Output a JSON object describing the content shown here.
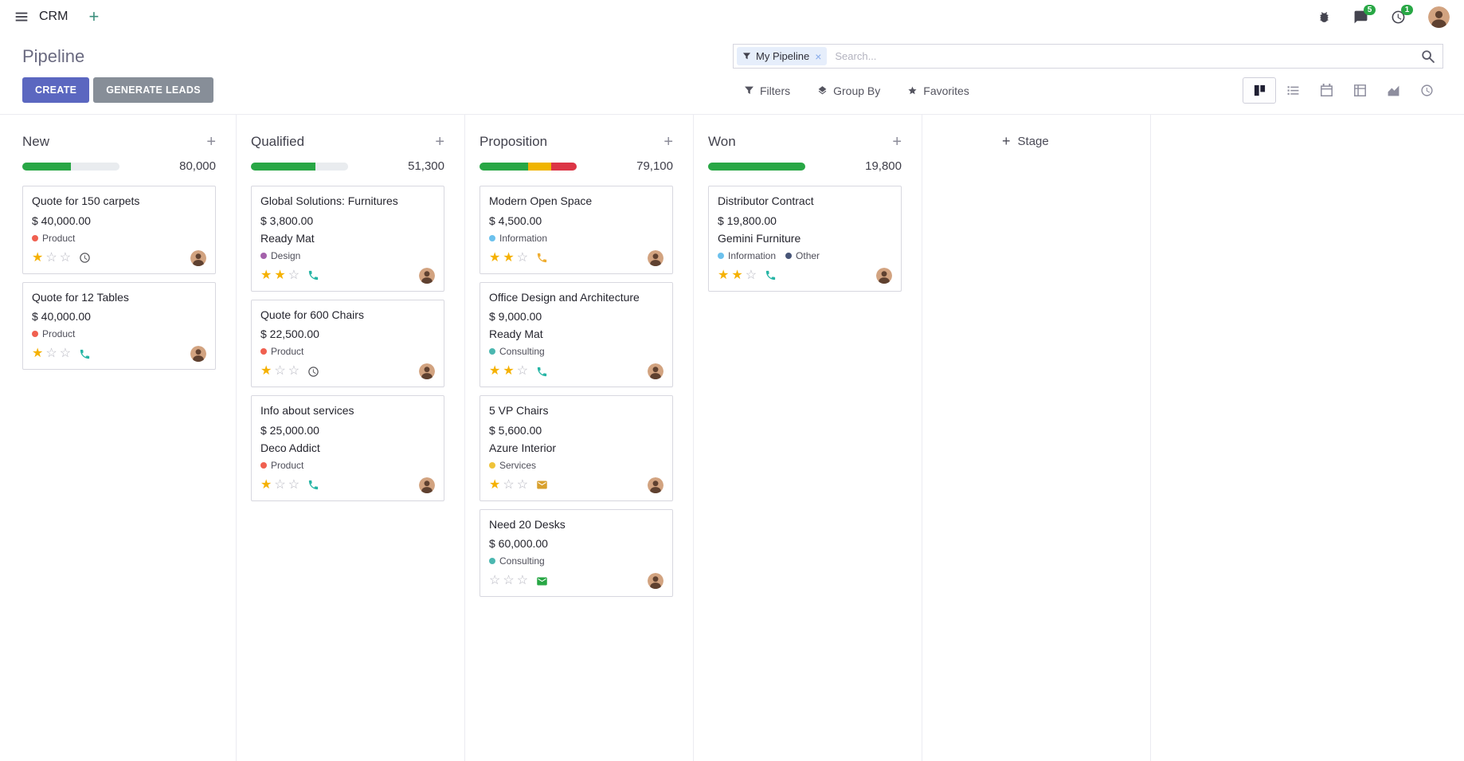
{
  "colors": {
    "primary_button": "#5b67c0",
    "secondary_button": "#878e98",
    "progress_success": "#28a745",
    "progress_warning": "#f0b400",
    "progress_danger": "#dc3545",
    "progress_track": "#e9ecef",
    "star_gold": "#f5b101",
    "badge_green": "#28a745",
    "facet_bg": "#e6eefb"
  },
  "topbar": {
    "app_name": "CRM",
    "messages_badge": "5",
    "activities_badge": "1"
  },
  "control_panel": {
    "breadcrumb": "Pipeline",
    "create_label": "CREATE",
    "generate_leads_label": "GENERATE LEADS",
    "search_facet": "My Pipeline",
    "search_placeholder": "Search...",
    "menus": [
      {
        "name": "filters",
        "icon": "filter-icon",
        "label": "Filters"
      },
      {
        "name": "group-by",
        "icon": "group-by-icon",
        "label": "Group By"
      },
      {
        "name": "favorites",
        "icon": "favorites-star-icon",
        "label": "Favorites"
      }
    ],
    "view_switcher": [
      {
        "name": "kanban",
        "icon": "kanban-view-icon",
        "active": true
      },
      {
        "name": "list",
        "icon": "list-view-icon",
        "active": false
      },
      {
        "name": "calendar",
        "icon": "calendar-view-icon",
        "active": false
      },
      {
        "name": "pivot",
        "icon": "pivot-view-icon",
        "active": false
      },
      {
        "name": "graph",
        "icon": "graph-view-icon",
        "active": false
      },
      {
        "name": "activity",
        "icon": "activity-view-icon",
        "active": false
      }
    ]
  },
  "kanban": {
    "add_stage_label": "Stage",
    "columns": [
      {
        "title": "New",
        "counter": "80,000",
        "progress": [
          {
            "color": "#28a745",
            "pct": 50
          },
          {
            "color": "#e9ecef",
            "pct": 50
          }
        ],
        "cards": [
          {
            "title": "Quote for 150 carpets",
            "amount": "$ 40,000.00",
            "tags": [
              {
                "label": "Product",
                "color": "#f06050"
              }
            ],
            "stars": 1,
            "activity": {
              "icon": "clock-icon",
              "color": "#545459"
            }
          },
          {
            "title": "Quote for 12 Tables",
            "amount": "$ 40,000.00",
            "tags": [
              {
                "label": "Product",
                "color": "#f06050"
              }
            ],
            "stars": 1,
            "activity": {
              "icon": "phone-icon",
              "color": "#26b5a5"
            }
          }
        ]
      },
      {
        "title": "Qualified",
        "counter": "51,300",
        "progress": [
          {
            "color": "#28a745",
            "pct": 66
          },
          {
            "color": "#e9ecef",
            "pct": 34
          }
        ],
        "cards": [
          {
            "title": "Global Solutions: Furnitures",
            "amount": "$ 3,800.00",
            "partner": "Ready Mat",
            "tags": [
              {
                "label": "Design",
                "color": "#a461ab"
              }
            ],
            "stars": 2,
            "activity": {
              "icon": "phone-icon",
              "color": "#26b5a5"
            }
          },
          {
            "title": "Quote for 600 Chairs",
            "amount": "$ 22,500.00",
            "tags": [
              {
                "label": "Product",
                "color": "#f06050"
              }
            ],
            "stars": 1,
            "activity": {
              "icon": "clock-icon",
              "color": "#545459"
            }
          },
          {
            "title": "Info about services",
            "amount": "$ 25,000.00",
            "partner": "Deco Addict",
            "tags": [
              {
                "label": "Product",
                "color": "#f06050"
              }
            ],
            "stars": 1,
            "activity": {
              "icon": "phone-icon",
              "color": "#26b5a5"
            }
          }
        ]
      },
      {
        "title": "Proposition",
        "counter": "79,100",
        "progress": [
          {
            "color": "#28a745",
            "pct": 50
          },
          {
            "color": "#f0b400",
            "pct": 24
          },
          {
            "color": "#dc3545",
            "pct": 26
          }
        ],
        "cards": [
          {
            "title": "Modern Open Space",
            "amount": "$ 4,500.00",
            "tags": [
              {
                "label": "Information",
                "color": "#6cc1ed"
              }
            ],
            "stars": 2,
            "activity": {
              "icon": "phone-icon",
              "color": "#efad31"
            }
          },
          {
            "title": "Office Design and Architecture",
            "amount": "$ 9,000.00",
            "partner": "Ready Mat",
            "tags": [
              {
                "label": "Consulting",
                "color": "#4bb7b0"
              }
            ],
            "stars": 2,
            "activity": {
              "icon": "phone-icon",
              "color": "#26b5a5"
            }
          },
          {
            "title": "5 VP Chairs",
            "amount": "$ 5,600.00",
            "partner": "Azure Interior",
            "tags": [
              {
                "label": "Services",
                "color": "#efc339"
              }
            ],
            "stars": 1,
            "activity": {
              "icon": "envelope-icon",
              "color": "#d8a02d"
            }
          },
          {
            "title": "Need 20 Desks",
            "amount": "$ 60,000.00",
            "tags": [
              {
                "label": "Consulting",
                "color": "#4bb7b0"
              }
            ],
            "stars": 0,
            "activity": {
              "icon": "envelope-icon",
              "color": "#28a745"
            }
          }
        ]
      },
      {
        "title": "Won",
        "counter": "19,800",
        "progress": [
          {
            "color": "#28a745",
            "pct": 100
          }
        ],
        "cards": [
          {
            "title": "Distributor Contract",
            "amount": "$ 19,800.00",
            "partner": "Gemini Furniture",
            "tags": [
              {
                "label": "Information",
                "color": "#6cc1ed"
              },
              {
                "label": "Other",
                "color": "#475577"
              }
            ],
            "stars": 2,
            "activity": {
              "icon": "phone-icon",
              "color": "#26b5a5"
            }
          }
        ]
      }
    ]
  }
}
